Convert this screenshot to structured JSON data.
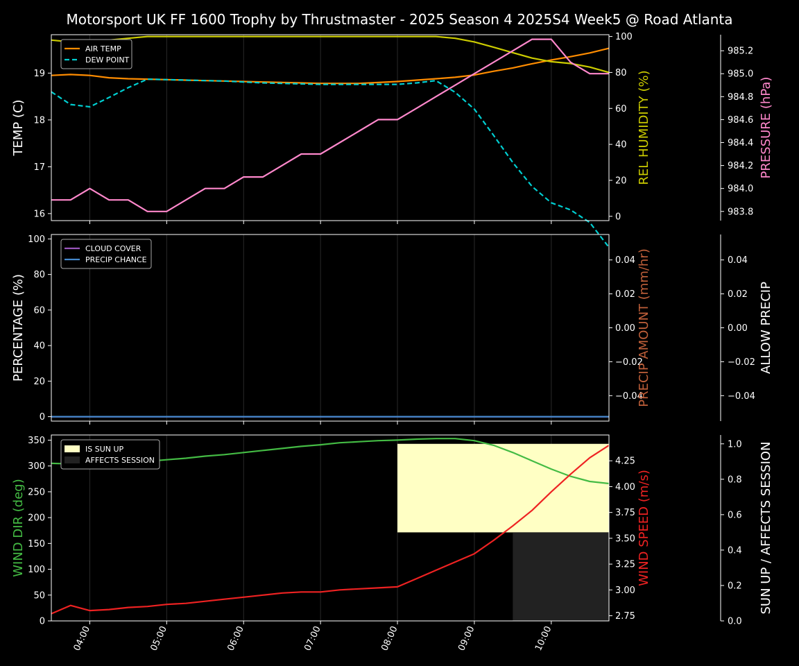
{
  "title": "Motorsport UK FF 1600 Trophy by Thrustmaster - 2025 Season 4 2025S4 Week5 @ Road Atlanta",
  "colors": {
    "background": "#000000",
    "axis": "#ffffff",
    "air_temp": "#ff8c00",
    "dew_point": "#00ced1",
    "humidity": "#cccc00",
    "pressure": "#ff88cc",
    "cloud": "#9955bb",
    "precip_chance": "#4488cc",
    "precip_amount_label": "#c0603a",
    "wind_dir": "#44bb44",
    "wind_speed": "#ee2222",
    "sun_up": "#ffffc4",
    "affects": "#222222"
  },
  "x_ticks": [
    "04:00",
    "05:00",
    "06:00",
    "07:00",
    "08:00",
    "09:00",
    "10:00"
  ],
  "chart_data": [
    {
      "type": "line",
      "panel": "weather",
      "x_range": [
        "03:30",
        "10:45"
      ],
      "x": [
        "03:30",
        "03:45",
        "04:00",
        "04:15",
        "04:30",
        "04:45",
        "05:00",
        "05:15",
        "05:30",
        "05:45",
        "06:00",
        "06:15",
        "06:30",
        "06:45",
        "07:00",
        "07:15",
        "07:30",
        "07:45",
        "08:00",
        "08:15",
        "08:30",
        "08:45",
        "09:00",
        "09:15",
        "09:30",
        "09:45",
        "10:00",
        "10:15",
        "10:30",
        "10:45"
      ],
      "axes": {
        "left": {
          "label": "TEMP (C)",
          "range": [
            15.85,
            19.82
          ],
          "ticks": [
            16,
            17,
            18,
            19
          ]
        },
        "right1": {
          "label": "REL HUMIDITY (%)",
          "range": [
            -2.4,
            101
          ],
          "ticks": [
            0,
            20,
            40,
            60,
            80,
            100
          ]
        },
        "right2": {
          "label": "PRESSURE (hPa)",
          "range": [
            983.72,
            985.34
          ],
          "ticks": [
            "983.8",
            "984.0",
            "984.2",
            "984.4",
            "984.6",
            "984.8",
            "985.0",
            "985.2"
          ]
        }
      },
      "legend": {
        "placement": "top-left",
        "entries": [
          "AIR TEMP",
          "DEW POINT"
        ]
      },
      "series": [
        {
          "name": "AIR TEMP",
          "axis": "left",
          "values": [
            18.95,
            18.97,
            18.95,
            18.9,
            18.88,
            18.87,
            18.86,
            18.85,
            18.84,
            18.83,
            18.82,
            18.81,
            18.8,
            18.79,
            18.78,
            18.78,
            18.78,
            18.8,
            18.82,
            18.85,
            18.88,
            18.91,
            18.96,
            19.04,
            19.11,
            19.2,
            19.28,
            19.35,
            19.43,
            19.53
          ]
        },
        {
          "name": "DEW POINT",
          "axis": "left",
          "values": [
            18.6,
            18.33,
            18.28,
            18.48,
            18.69,
            18.87,
            18.86,
            18.85,
            18.84,
            18.83,
            18.81,
            18.79,
            18.78,
            18.77,
            18.76,
            18.76,
            18.76,
            18.76,
            18.76,
            18.79,
            18.84,
            18.59,
            18.23,
            17.67,
            17.09,
            16.58,
            16.23,
            16.08,
            15.81,
            15.28
          ]
        },
        {
          "name": "REL HUMIDITY",
          "axis": "right1",
          "values": [
            98,
            97,
            97.5,
            98,
            99,
            100,
            100,
            100,
            100,
            100,
            100,
            100,
            100,
            100,
            100,
            100,
            100,
            100,
            100,
            100,
            100,
            99,
            97,
            94,
            91,
            88,
            86,
            85,
            83,
            80
          ]
        },
        {
          "name": "PRESSURE",
          "axis": "right2",
          "values": [
            983.9,
            983.9,
            984.0,
            983.9,
            983.9,
            983.8,
            983.8,
            983.9,
            984.0,
            984.0,
            984.1,
            984.1,
            984.2,
            984.3,
            984.3,
            984.4,
            984.5,
            984.6,
            984.6,
            984.7,
            984.8,
            984.9,
            985.0,
            985.1,
            985.2,
            985.3,
            985.3,
            985.1,
            985.0,
            985.0
          ]
        }
      ]
    },
    {
      "type": "line",
      "panel": "precipitation",
      "x_range": [
        "03:30",
        "10:45"
      ],
      "axes": {
        "left": {
          "label": "PERCENTAGE (%)",
          "range": [
            -2.5,
            102.5
          ],
          "ticks": [
            0,
            20,
            40,
            60,
            80,
            100
          ]
        },
        "right1": {
          "label": "PRECIP AMOUNT (mm/hr)",
          "range": [
            -0.055,
            0.055
          ],
          "ticks": [
            "0.04",
            "0.02",
            "0.00",
            "−0.02",
            "−0.04"
          ]
        },
        "right2": {
          "label": "ALLOW PRECIP",
          "range": [
            -0.055,
            0.055
          ],
          "ticks": [
            "0.04",
            "0.02",
            "0.00",
            "−0.02",
            "−0.04"
          ]
        }
      },
      "legend": {
        "placement": "top-left",
        "entries": [
          "CLOUD COVER",
          "PRECIP CHANCE"
        ]
      },
      "series": [
        {
          "name": "CLOUD COVER",
          "axis": "left",
          "x": [
            "03:30",
            "10:45"
          ],
          "values": [
            0,
            0
          ]
        },
        {
          "name": "PRECIP CHANCE",
          "axis": "left",
          "x": [
            "03:30",
            "10:45"
          ],
          "values": [
            0,
            0
          ]
        }
      ]
    },
    {
      "type": "line",
      "panel": "wind",
      "x_range": [
        "03:30",
        "10:45"
      ],
      "x": [
        "03:30",
        "03:45",
        "04:00",
        "04:15",
        "04:30",
        "04:45",
        "05:00",
        "05:15",
        "05:30",
        "05:45",
        "06:00",
        "06:15",
        "06:30",
        "06:45",
        "07:00",
        "07:15",
        "07:30",
        "07:45",
        "08:00",
        "08:15",
        "08:30",
        "08:45",
        "09:00",
        "09:15",
        "09:30",
        "09:45",
        "10:00",
        "10:15",
        "10:30",
        "10:45"
      ],
      "axes": {
        "left": {
          "label": "WIND DIR (deg)",
          "range": [
            0,
            360
          ],
          "ticks": [
            0,
            50,
            100,
            150,
            200,
            250,
            300,
            350
          ]
        },
        "right1": {
          "label": "WIND SPEED (m/s)",
          "range": [
            2.7,
            4.5
          ],
          "ticks": [
            "2.75",
            "3.00",
            "3.25",
            "3.50",
            "3.75",
            "4.00",
            "4.25"
          ]
        },
        "right2": {
          "label": "SUN UP / AFFECTS SESSION",
          "range": [
            0,
            1.05
          ],
          "ticks": [
            "0.0",
            "0.2",
            "0.4",
            "0.6",
            "0.8",
            "1.0"
          ]
        }
      },
      "legend": {
        "placement": "top-left",
        "entries": [
          "IS SUN UP",
          "AFFECTS SESSION"
        ]
      },
      "regions": [
        {
          "name": "IS SUN UP",
          "x": [
            "08:00",
            "10:45"
          ],
          "values": [
            0.5,
            1.0
          ]
        },
        {
          "name": "AFFECTS SESSION",
          "x": [
            "09:30",
            "10:45"
          ],
          "values": [
            0,
            0.5
          ]
        }
      ],
      "series": [
        {
          "name": "WIND DIR",
          "axis": "left",
          "values": [
            305,
            304,
            304,
            305,
            307,
            309,
            312,
            315,
            319,
            322,
            326,
            330,
            334,
            338,
            341,
            345,
            347,
            349,
            350,
            352,
            353,
            353,
            349,
            340,
            326,
            310,
            294,
            280,
            270,
            266
          ]
        },
        {
          "name": "WIND SPEED",
          "axis": "right1",
          "values": [
            2.77,
            2.85,
            2.8,
            2.81,
            2.83,
            2.84,
            2.86,
            2.87,
            2.89,
            2.91,
            2.93,
            2.95,
            2.97,
            2.98,
            2.98,
            3.0,
            3.01,
            3.02,
            3.03,
            3.11,
            3.19,
            3.27,
            3.35,
            3.48,
            3.62,
            3.77,
            3.95,
            4.12,
            4.28,
            4.4
          ]
        }
      ]
    }
  ]
}
